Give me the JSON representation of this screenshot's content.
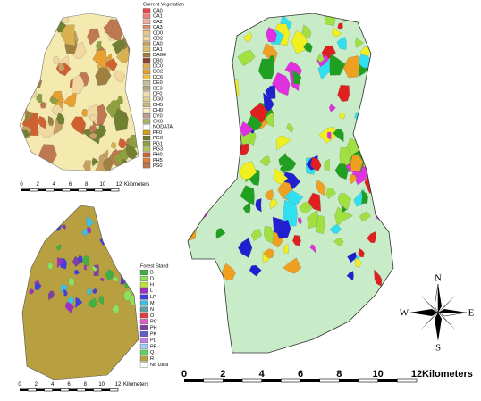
{
  "vegetation_map": {
    "legend_title": "Current Vegetation",
    "legend": [
      {
        "label": "CA0",
        "color": "#e84848"
      },
      {
        "label": "CA1",
        "color": "#f08080"
      },
      {
        "label": "CA2",
        "color": "#f0b0a0"
      },
      {
        "label": "CA3",
        "color": "#d89070"
      },
      {
        "label": "CD0",
        "color": "#e8c888"
      },
      {
        "label": "CD2",
        "color": "#f0d8a0"
      },
      {
        "label": "DA0",
        "color": "#c8a060"
      },
      {
        "label": "DA1",
        "color": "#e0c070"
      },
      {
        "label": "DAG0",
        "color": "#a08040"
      },
      {
        "label": "DB0",
        "color": "#904030"
      },
      {
        "label": "DC0",
        "color": "#d8b050"
      },
      {
        "label": "DC2",
        "color": "#e8a030"
      },
      {
        "label": "DC6",
        "color": "#f0c040"
      },
      {
        "label": "DE0",
        "color": "#c0c0a0"
      },
      {
        "label": "DE3",
        "color": "#b0a878"
      },
      {
        "label": "DF0",
        "color": "#f0e0b0"
      },
      {
        "label": "DG0",
        "color": "#e0d090"
      },
      {
        "label": "DH5",
        "color": "#c8b880"
      },
      {
        "label": "DH0",
        "color": "#f8f0c0"
      },
      {
        "label": "DY0",
        "color": "#b8a090"
      },
      {
        "label": "GK0",
        "color": "#a0b860"
      },
      {
        "label": "NODATA",
        "color": "#ffffff"
      },
      {
        "label": "PF0",
        "color": "#d0a020"
      },
      {
        "label": "PG0",
        "color": "#708030"
      },
      {
        "label": "PG1",
        "color": "#90a040"
      },
      {
        "label": "PG3",
        "color": "#b8c060"
      },
      {
        "label": "PH0",
        "color": "#d06030"
      },
      {
        "label": "PH5",
        "color": "#e08040"
      },
      {
        "label": "PS0",
        "color": "#c07850"
      }
    ],
    "scale_ticks": [
      0,
      2,
      4,
      6,
      8,
      10,
      12
    ],
    "scale_unit": "Kilometers"
  },
  "forest_map": {
    "legend_title": "Forest Stand",
    "legend": [
      {
        "label": "B",
        "color": "#40b040"
      },
      {
        "label": "D",
        "color": "#90e060"
      },
      {
        "label": "H",
        "color": "#c0e040"
      },
      {
        "label": "L",
        "color": "#a030c0"
      },
      {
        "label": "LP",
        "color": "#4040e0"
      },
      {
        "label": "M",
        "color": "#40c0e0"
      },
      {
        "label": "N",
        "color": "#60a0a0"
      },
      {
        "label": "O",
        "color": "#e04040"
      },
      {
        "label": "PC",
        "color": "#e060c0"
      },
      {
        "label": "PH",
        "color": "#8040a0"
      },
      {
        "label": "PK",
        "color": "#6060c0"
      },
      {
        "label": "PL",
        "color": "#c080e0"
      },
      {
        "label": "PR",
        "color": "#a0d0f0"
      },
      {
        "label": "Q",
        "color": "#60d060"
      },
      {
        "label": "R",
        "color": "#b8a040"
      },
      {
        "label": "No Data",
        "color": "#ffffff"
      }
    ],
    "scale_ticks": [
      0,
      2,
      4,
      6,
      8,
      10,
      12
    ],
    "scale_unit": "Kilometers"
  },
  "main_map": {
    "scale_ticks": [
      0,
      2,
      4,
      6,
      8,
      10,
      12
    ],
    "scale_unit": "Kilometers",
    "compass": {
      "north": "N",
      "east": "E",
      "south": "S",
      "west": "W"
    }
  }
}
